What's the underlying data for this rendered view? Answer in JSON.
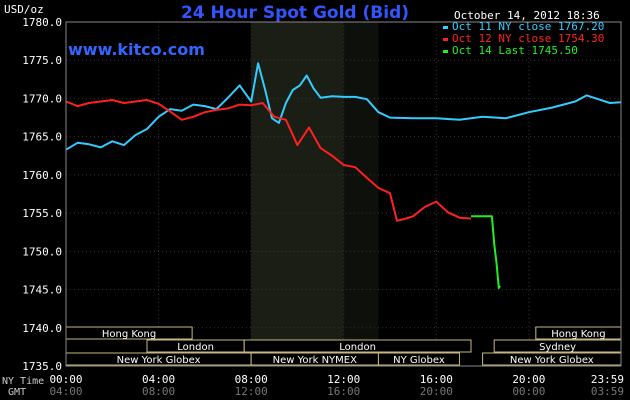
{
  "chart_data": {
    "type": "line",
    "title": "24 Hour Spot Gold (Bid)",
    "subtitle": "www.kitco.com",
    "timestamp": "October 14, 2012 18:36",
    "y_unit": "USD/oz",
    "ylim": [
      1735.0,
      1780.0
    ],
    "y_ticks": [
      "1780.0",
      "1775.0",
      "1770.0",
      "1765.0",
      "1760.0",
      "1755.0",
      "1750.0",
      "1745.0",
      "1740.0",
      "1735.0"
    ],
    "x_ticks_ny": [
      "00:00",
      "04:00",
      "08:00",
      "12:00",
      "16:00",
      "20:00",
      "23:59"
    ],
    "x_ticks_gmt": [
      "04:00",
      "08:00",
      "12:00",
      "16:00",
      "20:00",
      "00:00",
      "03:59"
    ],
    "x_row_labels": [
      "NY Time",
      "GMT"
    ],
    "grid": true,
    "legend_position": "top-right",
    "legend": [
      {
        "label": "Oct 11 NY close 1767.20",
        "color": "#33ccff"
      },
      {
        "label": "Oct 12 NY close 1754.30",
        "color": "#ff2020"
      },
      {
        "label": "Oct 14 Last 1745.50",
        "color": "#22ee22"
      }
    ],
    "series": [
      {
        "name": "Oct 11",
        "color": "#33ccff",
        "x": [
          0.0,
          0.5,
          1.0,
          1.5,
          2.0,
          2.5,
          3.0,
          3.5,
          4.0,
          4.5,
          5.0,
          5.5,
          6.0,
          6.5,
          7.0,
          7.5,
          8.0,
          8.3,
          8.6,
          8.9,
          9.2,
          9.5,
          9.8,
          10.1,
          10.4,
          10.7,
          11.0,
          11.5,
          12.0,
          12.5,
          13.0,
          13.5,
          14.0,
          15.0,
          16.0,
          17.0,
          18.0,
          19.0,
          20.0,
          21.0,
          22.0,
          22.5,
          23.0,
          23.5,
          23.98
        ],
        "y": [
          1763.3,
          1764.2,
          1764.0,
          1763.6,
          1764.4,
          1763.9,
          1765.2,
          1766.0,
          1767.6,
          1768.6,
          1768.4,
          1769.2,
          1769.0,
          1768.6,
          1770.1,
          1771.7,
          1769.6,
          1774.6,
          1771.2,
          1767.4,
          1766.8,
          1769.4,
          1771.1,
          1771.7,
          1773.0,
          1771.3,
          1770.1,
          1770.3,
          1770.2,
          1770.2,
          1769.9,
          1768.2,
          1767.5,
          1767.4,
          1767.4,
          1767.2,
          1767.6,
          1767.4,
          1768.2,
          1768.8,
          1769.6,
          1770.4,
          1769.9,
          1769.4,
          1769.5
        ]
      },
      {
        "name": "Oct 12",
        "color": "#ff2020",
        "x": [
          0.0,
          0.5,
          1.0,
          1.5,
          2.0,
          2.5,
          3.0,
          3.5,
          4.0,
          4.5,
          5.0,
          5.5,
          6.0,
          6.5,
          7.0,
          7.5,
          8.0,
          8.5,
          9.0,
          9.5,
          10.0,
          10.5,
          11.0,
          11.5,
          12.0,
          12.5,
          13.0,
          13.5,
          14.0,
          14.3,
          14.7,
          15.0,
          15.5,
          16.0,
          16.5,
          17.0,
          17.5
        ],
        "y": [
          1769.6,
          1769.0,
          1769.4,
          1769.6,
          1769.8,
          1769.4,
          1769.6,
          1769.8,
          1769.3,
          1768.3,
          1767.2,
          1767.6,
          1768.2,
          1768.5,
          1768.7,
          1769.2,
          1769.1,
          1769.4,
          1767.6,
          1767.2,
          1763.9,
          1766.2,
          1763.5,
          1762.5,
          1761.3,
          1761.0,
          1759.6,
          1758.3,
          1757.6,
          1754.0,
          1754.3,
          1754.6,
          1755.8,
          1756.5,
          1755.1,
          1754.4,
          1754.3
        ]
      },
      {
        "name": "Oct 14",
        "color": "#22ee22",
        "x": [
          17.5,
          18.4,
          18.5,
          18.6,
          18.7,
          18.75
        ],
        "y": [
          1754.6,
          1754.6,
          1751.0,
          1748.5,
          1745.2,
          1745.5
        ]
      }
    ],
    "highlight_bands": [
      {
        "x_from": 8.0,
        "x_to": 12.0,
        "color": "#1a1e14"
      },
      {
        "x_from": 12.0,
        "x_to": 13.5,
        "color": "#0e100b"
      }
    ],
    "sessions": [
      {
        "label": "Hong Kong",
        "row": 0,
        "x_from": 0.0,
        "x_to": 5.45
      },
      {
        "label": "Hong Kong",
        "row": 0,
        "x_from": 20.3,
        "x_to": 23.98
      },
      {
        "label": "London",
        "row": 1,
        "x_from": 3.5,
        "x_to": 7.7
      },
      {
        "label": "London",
        "row": 1,
        "x_from": 7.7,
        "x_to": 17.5
      },
      {
        "label": "Sydney",
        "row": 1,
        "x_from": 18.5,
        "x_to": 23.98
      },
      {
        "label": "New York Globex",
        "row": 2,
        "x_from": 0.0,
        "x_to": 8.0
      },
      {
        "label": "New York NYMEX",
        "row": 2,
        "x_from": 8.0,
        "x_to": 13.5
      },
      {
        "label": "NY Globex",
        "row": 2,
        "x_from": 13.5,
        "x_to": 17.0
      },
      {
        "label": "New York Globex",
        "row": 2,
        "x_from": 18.0,
        "x_to": 23.98
      }
    ]
  }
}
